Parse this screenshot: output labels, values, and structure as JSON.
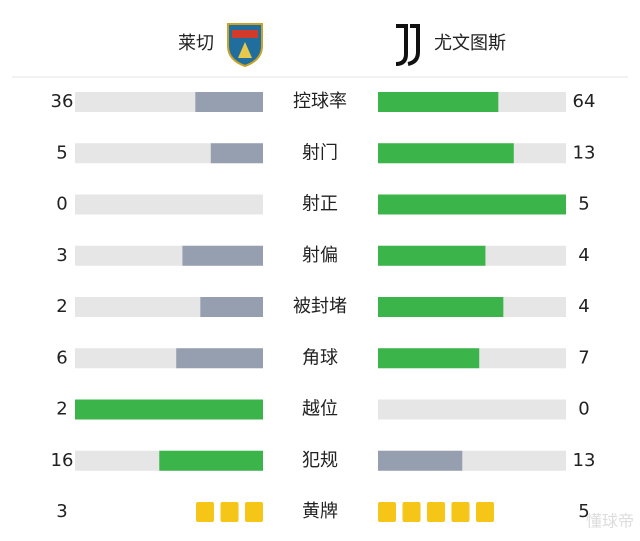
{
  "header": {
    "home": "莱切",
    "away": "尤文图斯"
  },
  "colors": {
    "higher": "#3bb54a",
    "lower": "#959fb0",
    "track": "#e6e6e6",
    "card": "#f5c518"
  },
  "stats": [
    {
      "label": "控球率",
      "home": 36,
      "away": 64
    },
    {
      "label": "射门",
      "home": 5,
      "away": 13
    },
    {
      "label": "射正",
      "home": 0,
      "away": 5
    },
    {
      "label": "射偏",
      "home": 3,
      "away": 4
    },
    {
      "label": "被封堵",
      "home": 2,
      "away": 4
    },
    {
      "label": "角球",
      "home": 6,
      "away": 7
    },
    {
      "label": "越位",
      "home": 2,
      "away": 0
    },
    {
      "label": "犯规",
      "home": 16,
      "away": 13
    },
    {
      "label": "黄牌",
      "home": 3,
      "away": 5,
      "kind": "cards"
    }
  ],
  "watermark": "懂球帝"
}
